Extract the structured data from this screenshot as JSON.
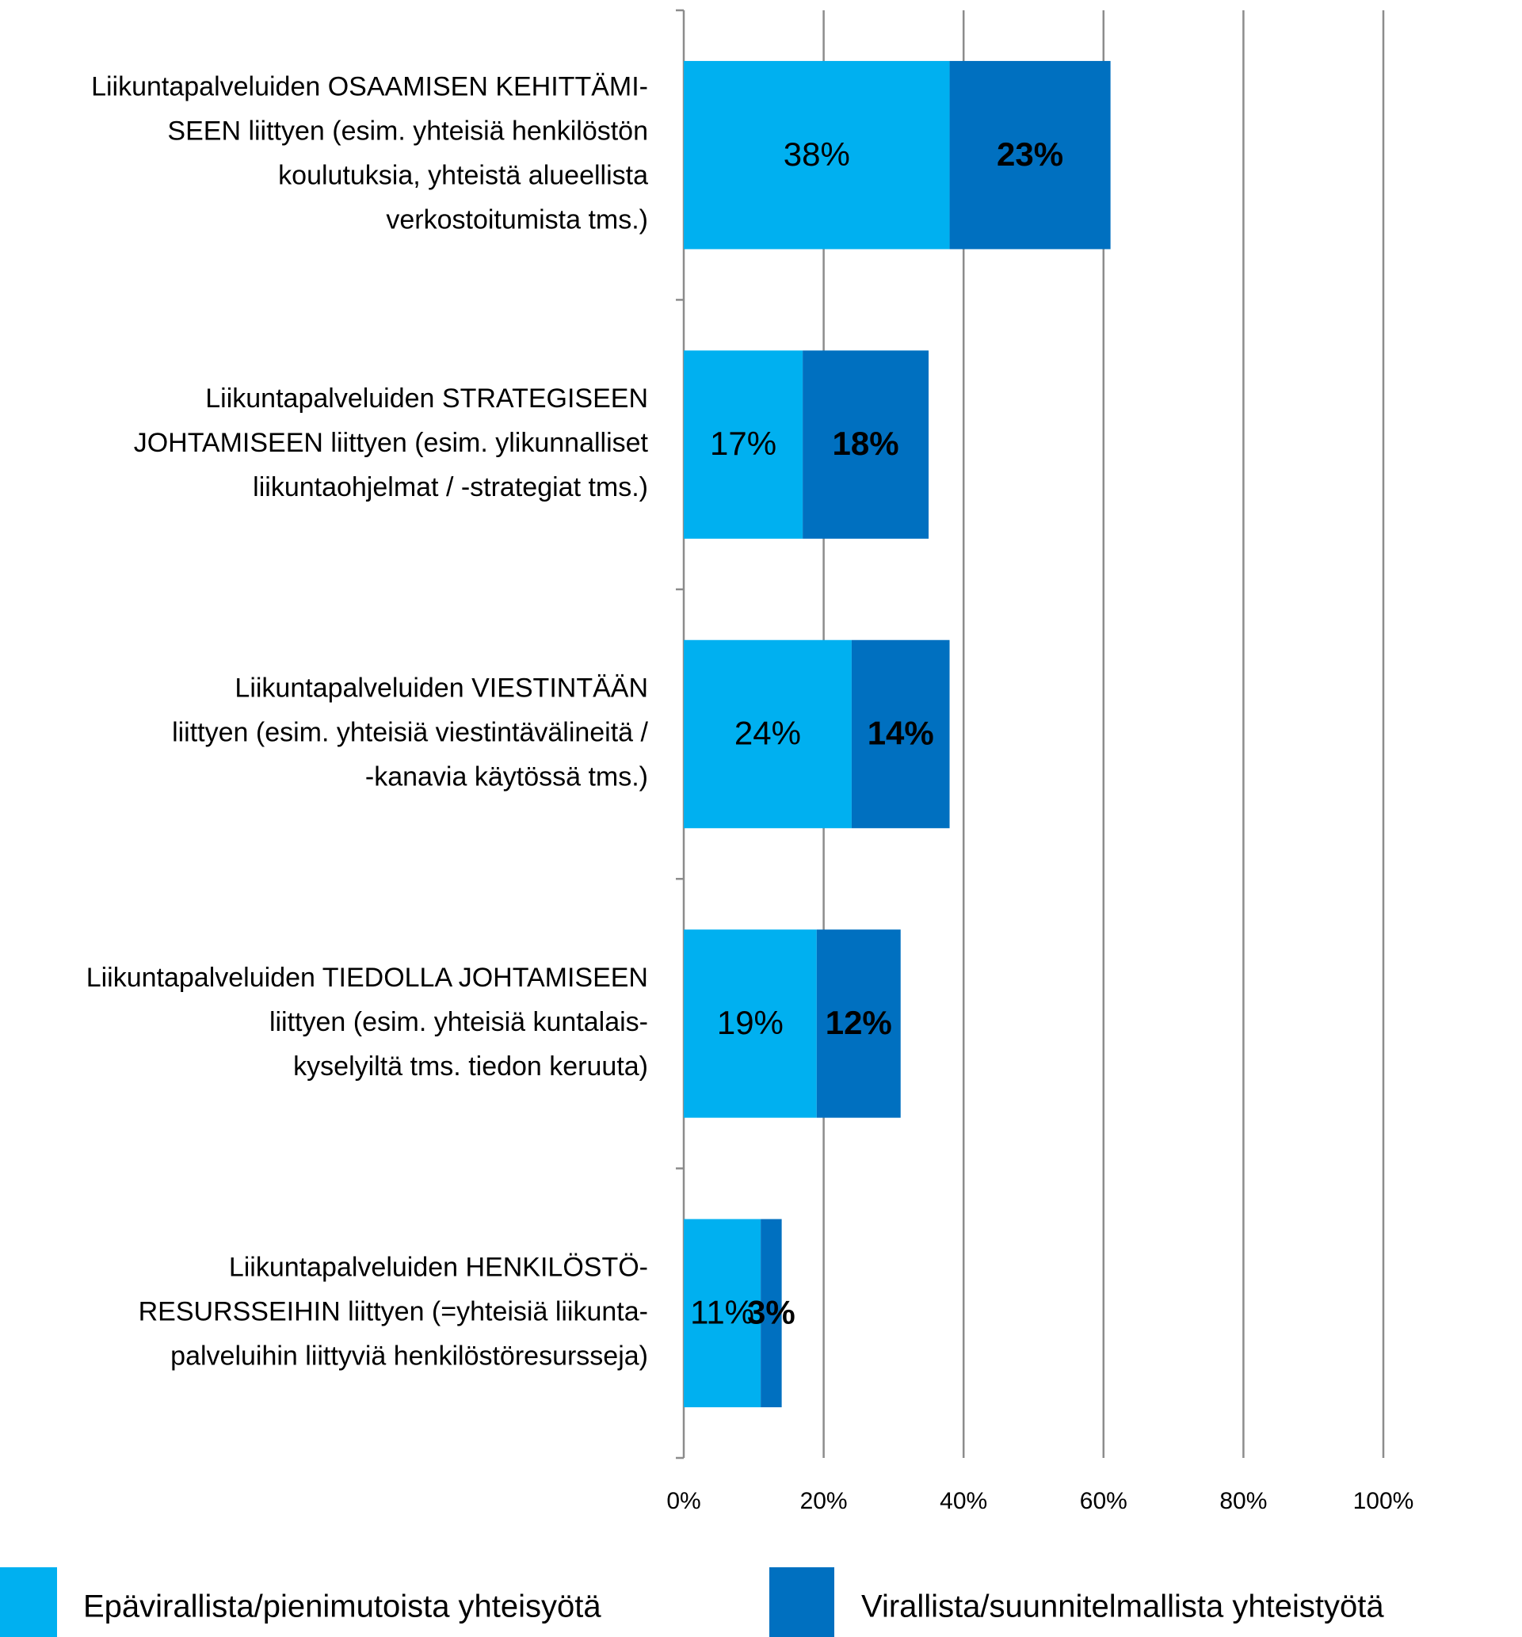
{
  "chart_data": {
    "type": "stacked_barh",
    "categories": [
      "Liikuntapalveluiden OSAAMISEN KEHITTÄMI-\nSEEN liittyen (esim. yhteisiä henkilöstön\nkoulutuksia, yhteistä alueellista\nverkostoitumista tms.)",
      "Liikuntapalveluiden STRATEGISEEN\nJOHTAMISEEN  liittyen (esim. ylikunnalliset\nliikuntaohjelmat / -strategiat tms.)",
      "Liikuntapalveluiden VIESTINTÄÄN\nliittyen (esim. yhteisiä viestintävälineitä /\n-kanavia käytössä tms.)",
      "Liikuntapalveluiden TIEDOLLA JOHTAMISEEN\nliittyen (esim. yhteisiä kuntalais-\nkyselyiltä tms. tiedon keruuta)",
      "Liikuntapalveluiden HENKILÖSTÖ-\nRESURSSEIHIN liittyen (=yhteisiä liikunta-\npalveluihin liittyviä henkilöstöresursseja)"
    ],
    "series": [
      {
        "name": "Epävirallista/pienimutoista yhteisyötä",
        "color": "#00b0f0",
        "label_color": "#000000",
        "values": [
          38,
          17,
          24,
          19,
          11
        ],
        "value_labels": [
          "38%",
          "17%",
          "24%",
          "19%",
          "11%"
        ]
      },
      {
        "name": "Virallista/suunnitelmallista yhteistyötä",
        "color": "#0070c0",
        "label_color": "#ffffff",
        "values": [
          23,
          18,
          14,
          12,
          3
        ],
        "value_labels": [
          "23%",
          "18%",
          "14%",
          "12%",
          "3%"
        ]
      }
    ],
    "xlim": [
      0,
      100
    ],
    "xticks": [
      {
        "value": 0,
        "label": "0%"
      },
      {
        "value": 20,
        "label": "20%"
      },
      {
        "value": 40,
        "label": "40%"
      },
      {
        "value": 60,
        "label": "60%"
      },
      {
        "value": 80,
        "label": "80%"
      },
      {
        "value": 100,
        "label": "100%"
      }
    ],
    "grid": true,
    "legend": "bottom"
  }
}
